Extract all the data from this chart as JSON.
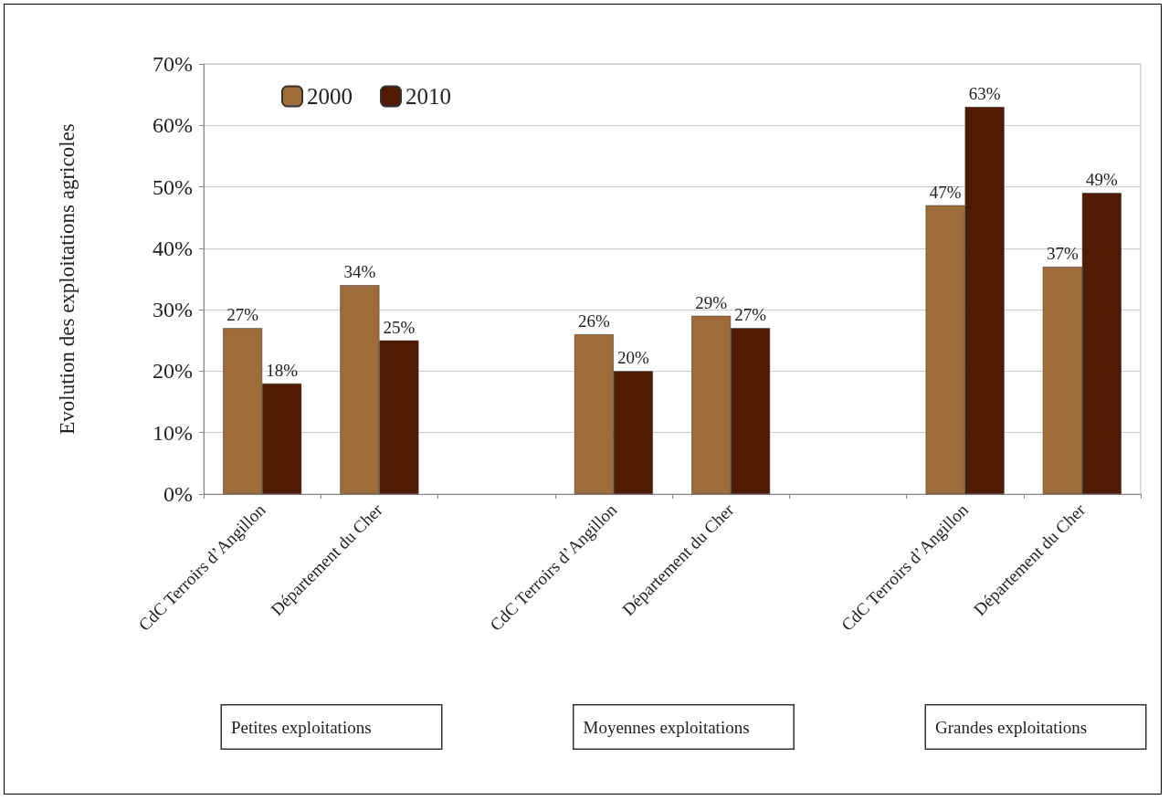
{
  "chart_data": {
    "type": "bar",
    "ylabel": "Evolution des exploitations agricoles",
    "categories": [
      "CdC Terroirs d’Angillon",
      "Département du Cher",
      null,
      "CdC Terroirs d’Angillon",
      "Département du Cher",
      null,
      "CdC Terroirs d’Angillon",
      "Département du Cher"
    ],
    "series": [
      {
        "name": "2000",
        "color": "#9e6b3a",
        "values": [
          27,
          34,
          null,
          26,
          29,
          null,
          47,
          37
        ],
        "value_labels": [
          "27%",
          "34%",
          null,
          "26%",
          "29%",
          null,
          "47%",
          "37%"
        ]
      },
      {
        "name": "2010",
        "color": "#4f1b02",
        "values": [
          18,
          25,
          null,
          20,
          27,
          null,
          63,
          49
        ],
        "value_labels": [
          "18%",
          "25%",
          null,
          "20%",
          "27%",
          null,
          "63%",
          "49%"
        ]
      }
    ],
    "ylim": [
      0,
      70
    ],
    "yticks": [
      {
        "value": 0,
        "label": "0%"
      },
      {
        "value": 10,
        "label": "10%"
      },
      {
        "value": 20,
        "label": "20%"
      },
      {
        "value": 30,
        "label": "30%"
      },
      {
        "value": 40,
        "label": "40%"
      },
      {
        "value": 50,
        "label": "50%"
      },
      {
        "value": 60,
        "label": "60%"
      },
      {
        "value": 70,
        "label": "70%"
      }
    ],
    "grid": "y",
    "legend": "top left",
    "annotations": [
      "Petites exploitations",
      "Moyennes exploitations",
      "Grandes exploitations"
    ]
  }
}
